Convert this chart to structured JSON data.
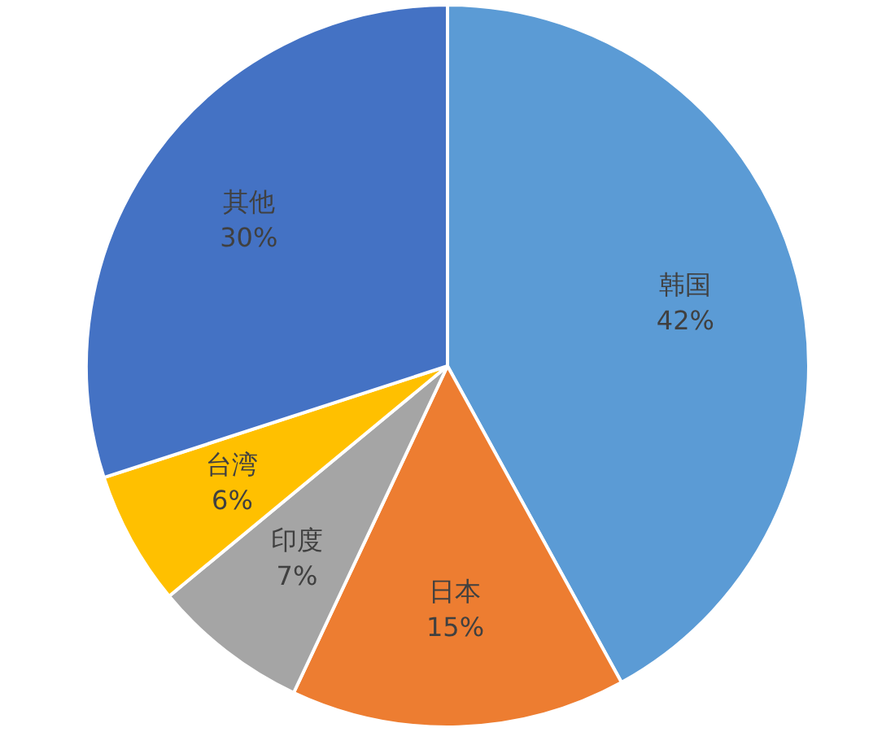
{
  "chart_data": {
    "type": "pie",
    "categories": [
      "韩国",
      "日本",
      "印度",
      "台湾",
      "其他"
    ],
    "values": [
      42,
      15,
      7,
      6,
      30
    ],
    "value_labels": [
      "42%",
      "15%",
      "7%",
      "6%",
      "30%"
    ],
    "colors": [
      "#5b9bd5",
      "#ed7d31",
      "#a5a5a5",
      "#ffc000",
      "#4472c4"
    ],
    "legend": false
  }
}
